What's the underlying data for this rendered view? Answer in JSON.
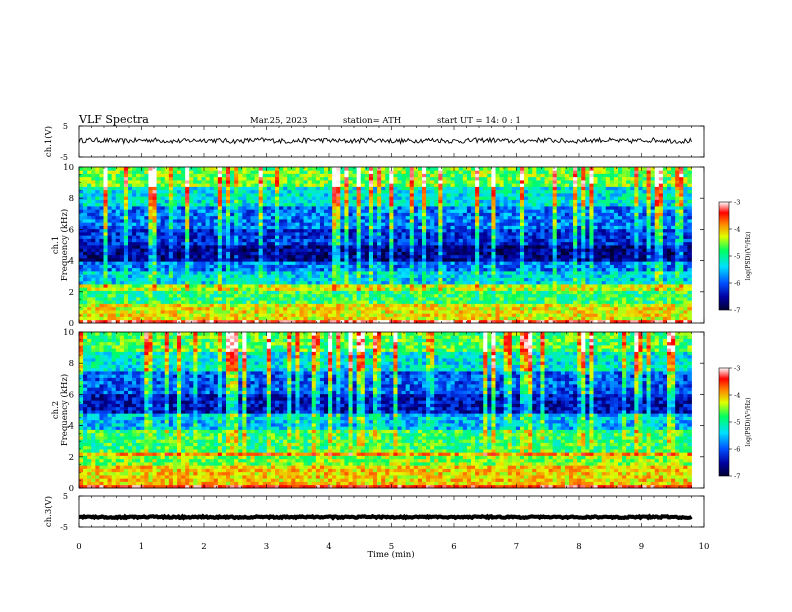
{
  "header": {
    "title": "VLF  Spectra",
    "date": "Mar.25, 2023",
    "station": "station= ATH",
    "start": "start  UT  =    14: 0   : 1"
  },
  "chart_data": [
    {
      "type": "line",
      "panel": "ch1-waveform",
      "ylabel": "ch.1(V)",
      "ylim": [
        -5,
        5
      ],
      "yticks": [
        {
          "v": 5,
          "t": "5"
        },
        {
          "v": -5,
          "t": "-5"
        }
      ],
      "mean_level": 0.3,
      "noise_amplitude": 0.8
    },
    {
      "type": "heatmap",
      "panel": "ch1-spectrogram",
      "ylabel": "ch.1\nFrequency  (kHz)",
      "ylim": [
        0,
        10
      ],
      "yticks": [
        "0",
        "2",
        "4",
        "6",
        "8",
        "10"
      ],
      "colorbar": {
        "label": "log(PSD)(V²/Hz)",
        "range": [
          -7,
          -3
        ],
        "ticks": [
          "-3",
          "-4",
          "-5",
          "-6",
          "-7"
        ]
      },
      "band_levels": [
        {
          "f": [
            0.0,
            0.3
          ],
          "v": -3.3
        },
        {
          "f": [
            0.3,
            1.2
          ],
          "v": -4.4
        },
        {
          "f": [
            1.2,
            2.1
          ],
          "v": -5.0
        },
        {
          "f": [
            2.1,
            2.4
          ],
          "v": -4.6
        },
        {
          "f": [
            2.4,
            3.4
          ],
          "v": -5.5
        },
        {
          "f": [
            3.4,
            4.0
          ],
          "v": -5.9
        },
        {
          "f": [
            4.0,
            5.1
          ],
          "v": -6.6
        },
        {
          "f": [
            5.1,
            6.0
          ],
          "v": -6.2
        },
        {
          "f": [
            6.0,
            7.5
          ],
          "v": -5.9
        },
        {
          "f": [
            7.5,
            8.8
          ],
          "v": -5.4
        },
        {
          "f": [
            8.8,
            10.0
          ],
          "v": -4.8
        }
      ]
    },
    {
      "type": "heatmap",
      "panel": "ch2-spectrogram",
      "ylabel": "ch.2\nFrequency  (kHz)",
      "ylim": [
        0,
        10
      ],
      "yticks": [
        "0",
        "2",
        "4",
        "6",
        "8",
        "10"
      ],
      "colorbar": {
        "label": "log(PSD)(V²/Hz)",
        "range": [
          -7,
          -3
        ],
        "ticks": [
          "-3",
          "-4",
          "-5",
          "-6",
          "-7"
        ]
      },
      "band_levels": [
        {
          "f": [
            0.0,
            0.3
          ],
          "v": -3.5
        },
        {
          "f": [
            0.3,
            1.5
          ],
          "v": -4.3
        },
        {
          "f": [
            1.5,
            2.0
          ],
          "v": -4.7
        },
        {
          "f": [
            2.0,
            2.3
          ],
          "v": -4.1
        },
        {
          "f": [
            2.3,
            3.7
          ],
          "v": -5.0
        },
        {
          "f": [
            3.7,
            4.8
          ],
          "v": -5.6
        },
        {
          "f": [
            4.8,
            6.0
          ],
          "v": -6.4
        },
        {
          "f": [
            6.0,
            7.5
          ],
          "v": -6.0
        },
        {
          "f": [
            7.5,
            8.8
          ],
          "v": -5.4
        },
        {
          "f": [
            8.8,
            10.0
          ],
          "v": -4.9
        }
      ]
    },
    {
      "type": "line",
      "panel": "ch3-waveform",
      "ylabel": "ch.3(V)",
      "ylim": [
        -5,
        5
      ],
      "yticks": [
        {
          "v": 5,
          "t": "5"
        },
        {
          "v": -5,
          "t": "-5"
        }
      ],
      "mean_level": -1.8,
      "noise_amplitude": 0.25
    }
  ],
  "x_axis": {
    "label": "Time  (min)",
    "xlim": [
      0,
      10
    ],
    "data_end": 9.8,
    "ticks": [
      "0",
      "1",
      "2",
      "3",
      "4",
      "5",
      "6",
      "7",
      "8",
      "9",
      "10"
    ]
  },
  "colors": {
    "scale": [
      "#000033",
      "#0000a0",
      "#0050ff",
      "#00e0ff",
      "#00ff60",
      "#e0ff00",
      "#ff8000",
      "#ff0000",
      "#ffffff"
    ],
    "line": "#000000"
  }
}
